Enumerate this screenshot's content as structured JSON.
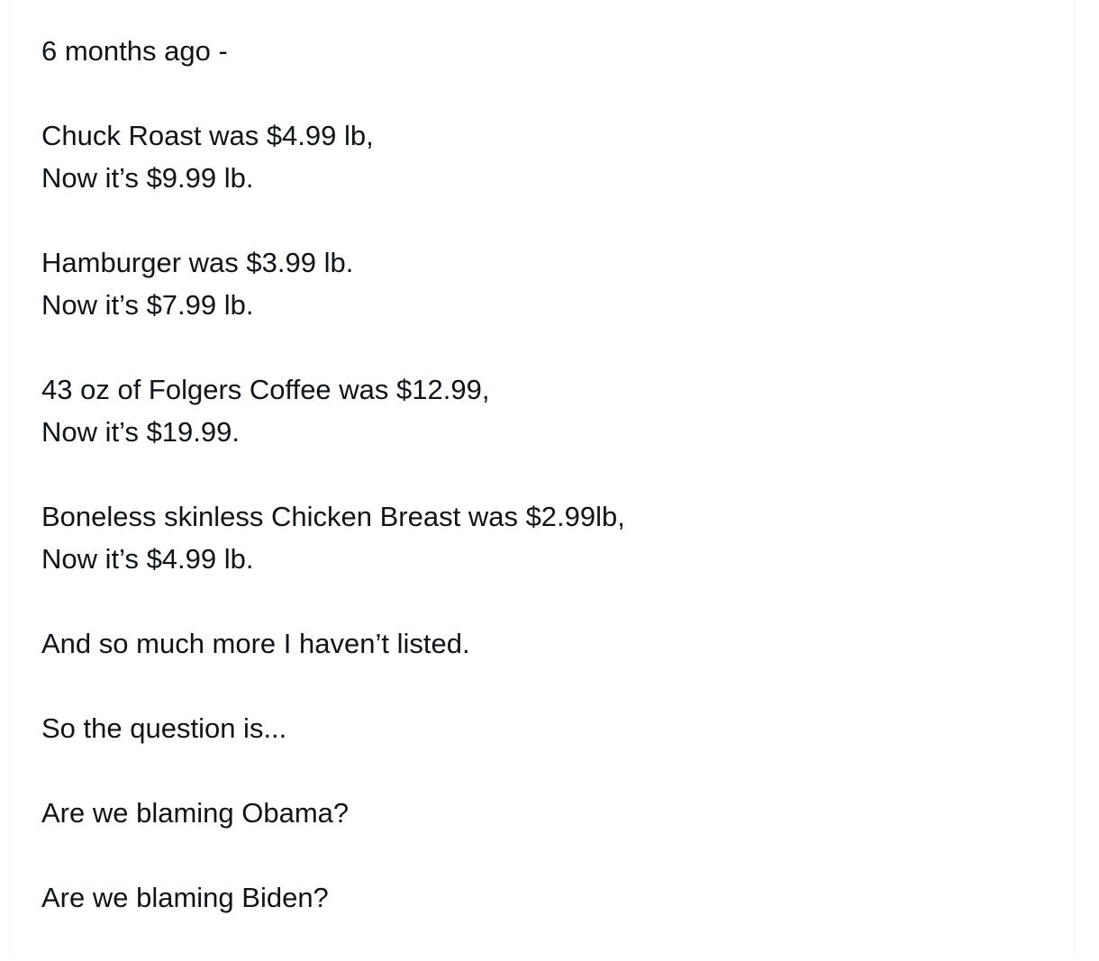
{
  "post": {
    "paragraphs": [
      [
        "6 months ago -"
      ],
      [
        "Chuck Roast was $4.99 lb,",
        "Now it’s $9.99 lb."
      ],
      [
        "Hamburger was $3.99 lb.",
        "Now it’s $7.99 lb."
      ],
      [
        "43 oz of Folgers Coffee was $12.99,",
        "Now it’s $19.99."
      ],
      [
        "Boneless skinless Chicken Breast was $2.99lb,",
        "Now it’s $4.99 lb."
      ],
      [
        "And so much more I haven’t listed."
      ],
      [
        "So the question is..."
      ],
      [
        "Are we blaming Obama?"
      ],
      [
        "Are we blaming Biden?"
      ]
    ]
  }
}
